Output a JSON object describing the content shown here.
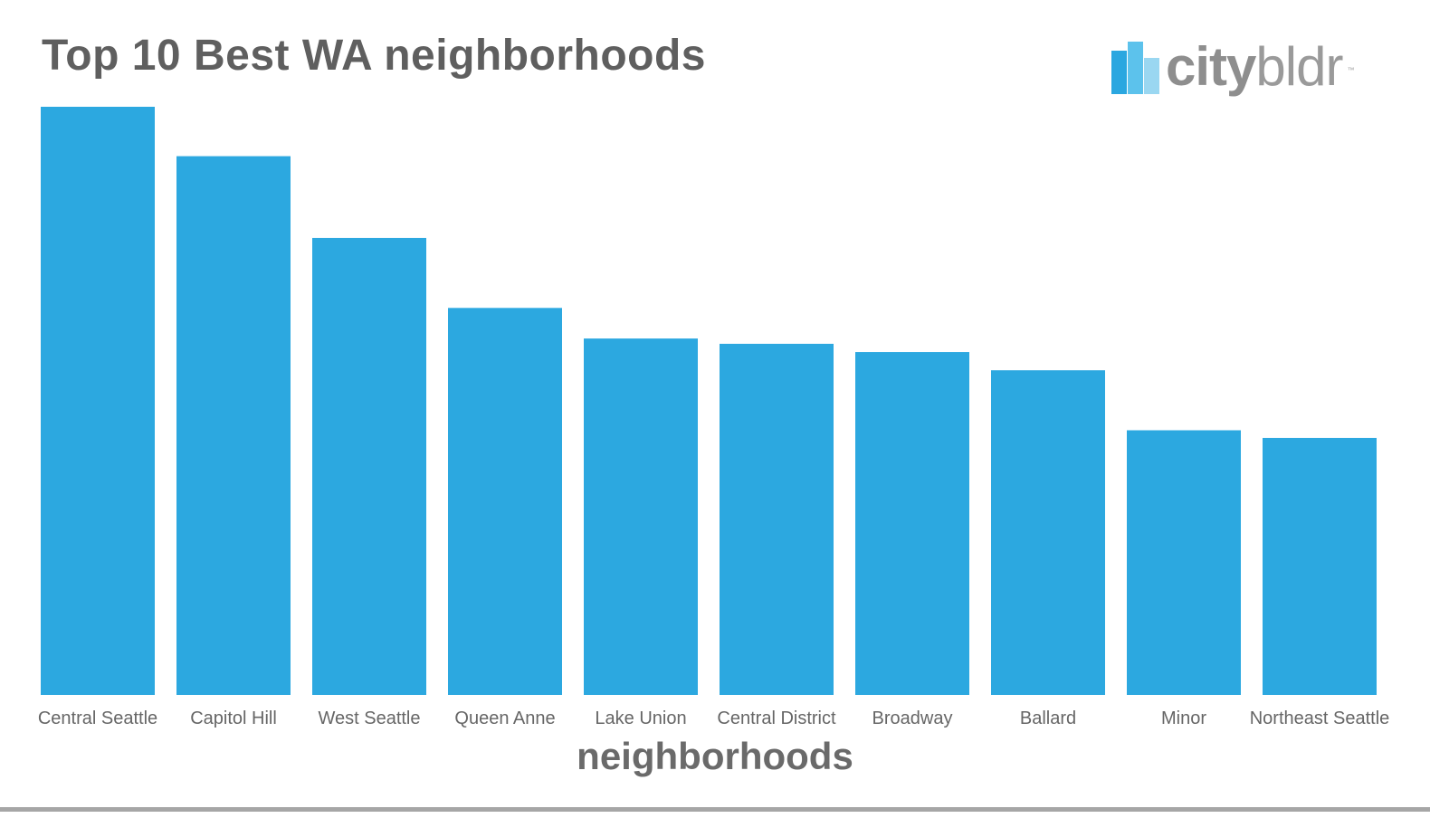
{
  "chart_data": {
    "type": "bar",
    "title": "Top 10 Best WA neighborhoods",
    "xlabel": "neighborhoods",
    "ylabel": "",
    "categories": [
      "Central Seattle",
      "Capitol Hill",
      "West Seattle",
      "Queen Anne",
      "Lake Union",
      "Central District",
      "Broadway",
      "Ballard",
      "Minor",
      "Northeast Seattle"
    ],
    "values": [
      100,
      91.6,
      77.7,
      65.8,
      60.6,
      59.7,
      58.3,
      55.2,
      45.0,
      43.7
    ],
    "value_note": "relative bar heights, tallest bar = 100 (no value axis shown)",
    "ylim": [
      0,
      100
    ],
    "grid": false,
    "legend": "none",
    "bar_color": "#2ca8e0"
  },
  "logo": {
    "text_bold": "city",
    "text_light": "bldr",
    "tm": "™",
    "colors": [
      "#2aa7e0",
      "#5cc2ec",
      "#9ad7f1"
    ]
  }
}
